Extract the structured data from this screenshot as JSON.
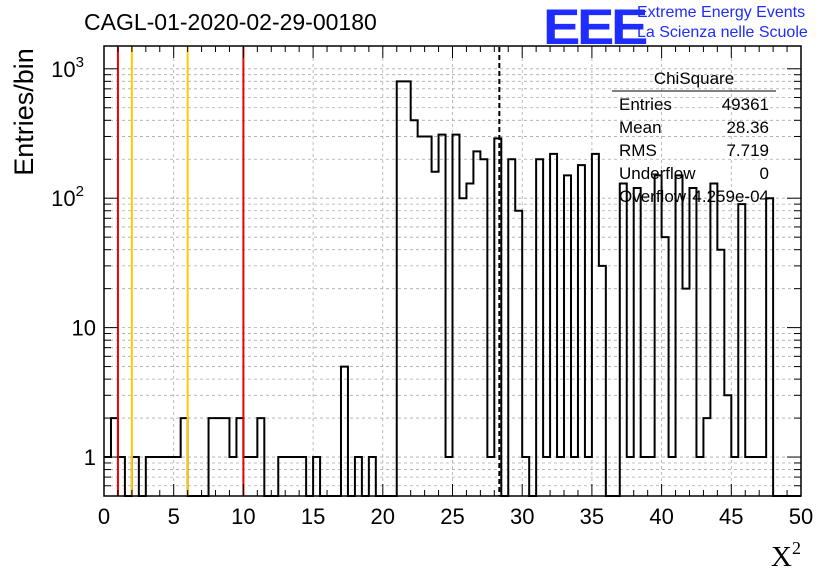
{
  "header": {
    "title": "CAGL-01-2020-02-29-00180"
  },
  "logo": {
    "mark": "EEE",
    "line1": "Extreme Energy Events",
    "line2": "La Scienza nelle Scuole",
    "color": "#1f2cff"
  },
  "stats_box": {
    "title": "ChiSquare",
    "rows": [
      {
        "label": "Entries",
        "value": "49361"
      },
      {
        "label": "Mean",
        "value": "28.36"
      },
      {
        "label": "RMS",
        "value": "7.719"
      },
      {
        "label": "Underflow",
        "value": "0"
      },
      {
        "label": "Overflow",
        "value": "4.259e-04"
      }
    ]
  },
  "chart_data": {
    "type": "histogram",
    "title": "CAGL-01-2020-02-29-00180",
    "xlabel": "X²",
    "ylabel": "Entries/bin",
    "xlim": [
      0,
      50
    ],
    "ylim": [
      0.5,
      1500
    ],
    "yscale": "log",
    "grid": true,
    "x_ticks": [
      "0",
      "5",
      "10",
      "15",
      "20",
      "25",
      "30",
      "35",
      "40",
      "45",
      "50"
    ],
    "y_ticks": [
      {
        "value": 1,
        "label": "1"
      },
      {
        "value": 10,
        "label": "10"
      },
      {
        "value": 100,
        "label": "10",
        "exp": "2"
      },
      {
        "value": 1000,
        "label": "10",
        "exp": "3"
      }
    ],
    "bin_width": 0.5,
    "bins": [
      {
        "x": 0.0,
        "count": 1
      },
      {
        "x": 0.5,
        "count": 2
      },
      {
        "x": 1.0,
        "count": 1
      },
      {
        "x": 2.0,
        "count": 1
      },
      {
        "x": 3.0,
        "count": 1
      },
      {
        "x": 3.5,
        "count": 1
      },
      {
        "x": 4.0,
        "count": 1
      },
      {
        "x": 4.5,
        "count": 1
      },
      {
        "x": 5.0,
        "count": 1
      },
      {
        "x": 5.5,
        "count": 2
      },
      {
        "x": 7.5,
        "count": 2
      },
      {
        "x": 8.0,
        "count": 2
      },
      {
        "x": 8.5,
        "count": 2
      },
      {
        "x": 9.0,
        "count": 1
      },
      {
        "x": 9.5,
        "count": 2
      },
      {
        "x": 10.0,
        "count": 1
      },
      {
        "x": 10.5,
        "count": 1
      },
      {
        "x": 11.0,
        "count": 2
      },
      {
        "x": 12.5,
        "count": 1
      },
      {
        "x": 13.0,
        "count": 1
      },
      {
        "x": 13.5,
        "count": 1
      },
      {
        "x": 14.0,
        "count": 1
      },
      {
        "x": 15.0,
        "count": 1
      },
      {
        "x": 17.0,
        "count": 5
      },
      {
        "x": 18.0,
        "count": 1
      },
      {
        "x": 19.0,
        "count": 1
      },
      {
        "x": 21.0,
        "count": 800
      },
      {
        "x": 21.5,
        "count": 800
      },
      {
        "x": 22.0,
        "count": 400
      },
      {
        "x": 22.5,
        "count": 300
      },
      {
        "x": 23.0,
        "count": 300
      },
      {
        "x": 23.5,
        "count": 160
      },
      {
        "x": 24.0,
        "count": 310
      },
      {
        "x": 24.5,
        "count": 1
      },
      {
        "x": 25.0,
        "count": 310
      },
      {
        "x": 25.5,
        "count": 100
      },
      {
        "x": 26.0,
        "count": 130
      },
      {
        "x": 26.5,
        "count": 230
      },
      {
        "x": 27.0,
        "count": 200
      },
      {
        "x": 27.5,
        "count": 1
      },
      {
        "x": 28.0,
        "count": 290
      },
      {
        "x": 29.0,
        "count": 200
      },
      {
        "x": 29.5,
        "count": 80
      },
      {
        "x": 30.0,
        "count": 1
      },
      {
        "x": 31.0,
        "count": 200
      },
      {
        "x": 31.5,
        "count": 1
      },
      {
        "x": 32.0,
        "count": 220
      },
      {
        "x": 32.5,
        "count": 1
      },
      {
        "x": 33.0,
        "count": 150
      },
      {
        "x": 33.5,
        "count": 1
      },
      {
        "x": 34.0,
        "count": 180
      },
      {
        "x": 34.5,
        "count": 1
      },
      {
        "x": 35.0,
        "count": 220
      },
      {
        "x": 35.5,
        "count": 30
      },
      {
        "x": 37.0,
        "count": 130
      },
      {
        "x": 37.5,
        "count": 1
      },
      {
        "x": 38.0,
        "count": 120
      },
      {
        "x": 38.5,
        "count": 1
      },
      {
        "x": 39.0,
        "count": 1
      },
      {
        "x": 39.5,
        "count": 150
      },
      {
        "x": 40.0,
        "count": 50
      },
      {
        "x": 40.5,
        "count": 1
      },
      {
        "x": 41.0,
        "count": 150
      },
      {
        "x": 41.5,
        "count": 20
      },
      {
        "x": 42.0,
        "count": 120
      },
      {
        "x": 42.5,
        "count": 1
      },
      {
        "x": 43.0,
        "count": 2
      },
      {
        "x": 43.5,
        "count": 130
      },
      {
        "x": 44.0,
        "count": 40
      },
      {
        "x": 44.5,
        "count": 3
      },
      {
        "x": 45.0,
        "count": 1
      },
      {
        "x": 45.5,
        "count": 90
      },
      {
        "x": 46.0,
        "count": 1
      },
      {
        "x": 46.5,
        "count": 1
      },
      {
        "x": 47.0,
        "count": 1
      },
      {
        "x": 47.5,
        "count": 100
      }
    ],
    "vertical_lines": [
      {
        "x": 1,
        "color": "#ee0000",
        "style": "solid"
      },
      {
        "x": 2,
        "color": "#ffcc00",
        "style": "solid"
      },
      {
        "x": 6,
        "color": "#ffcc00",
        "style": "solid"
      },
      {
        "x": 10,
        "color": "#ee0000",
        "style": "solid"
      },
      {
        "x": 28.36,
        "color": "#000000",
        "style": "dashed"
      }
    ]
  }
}
